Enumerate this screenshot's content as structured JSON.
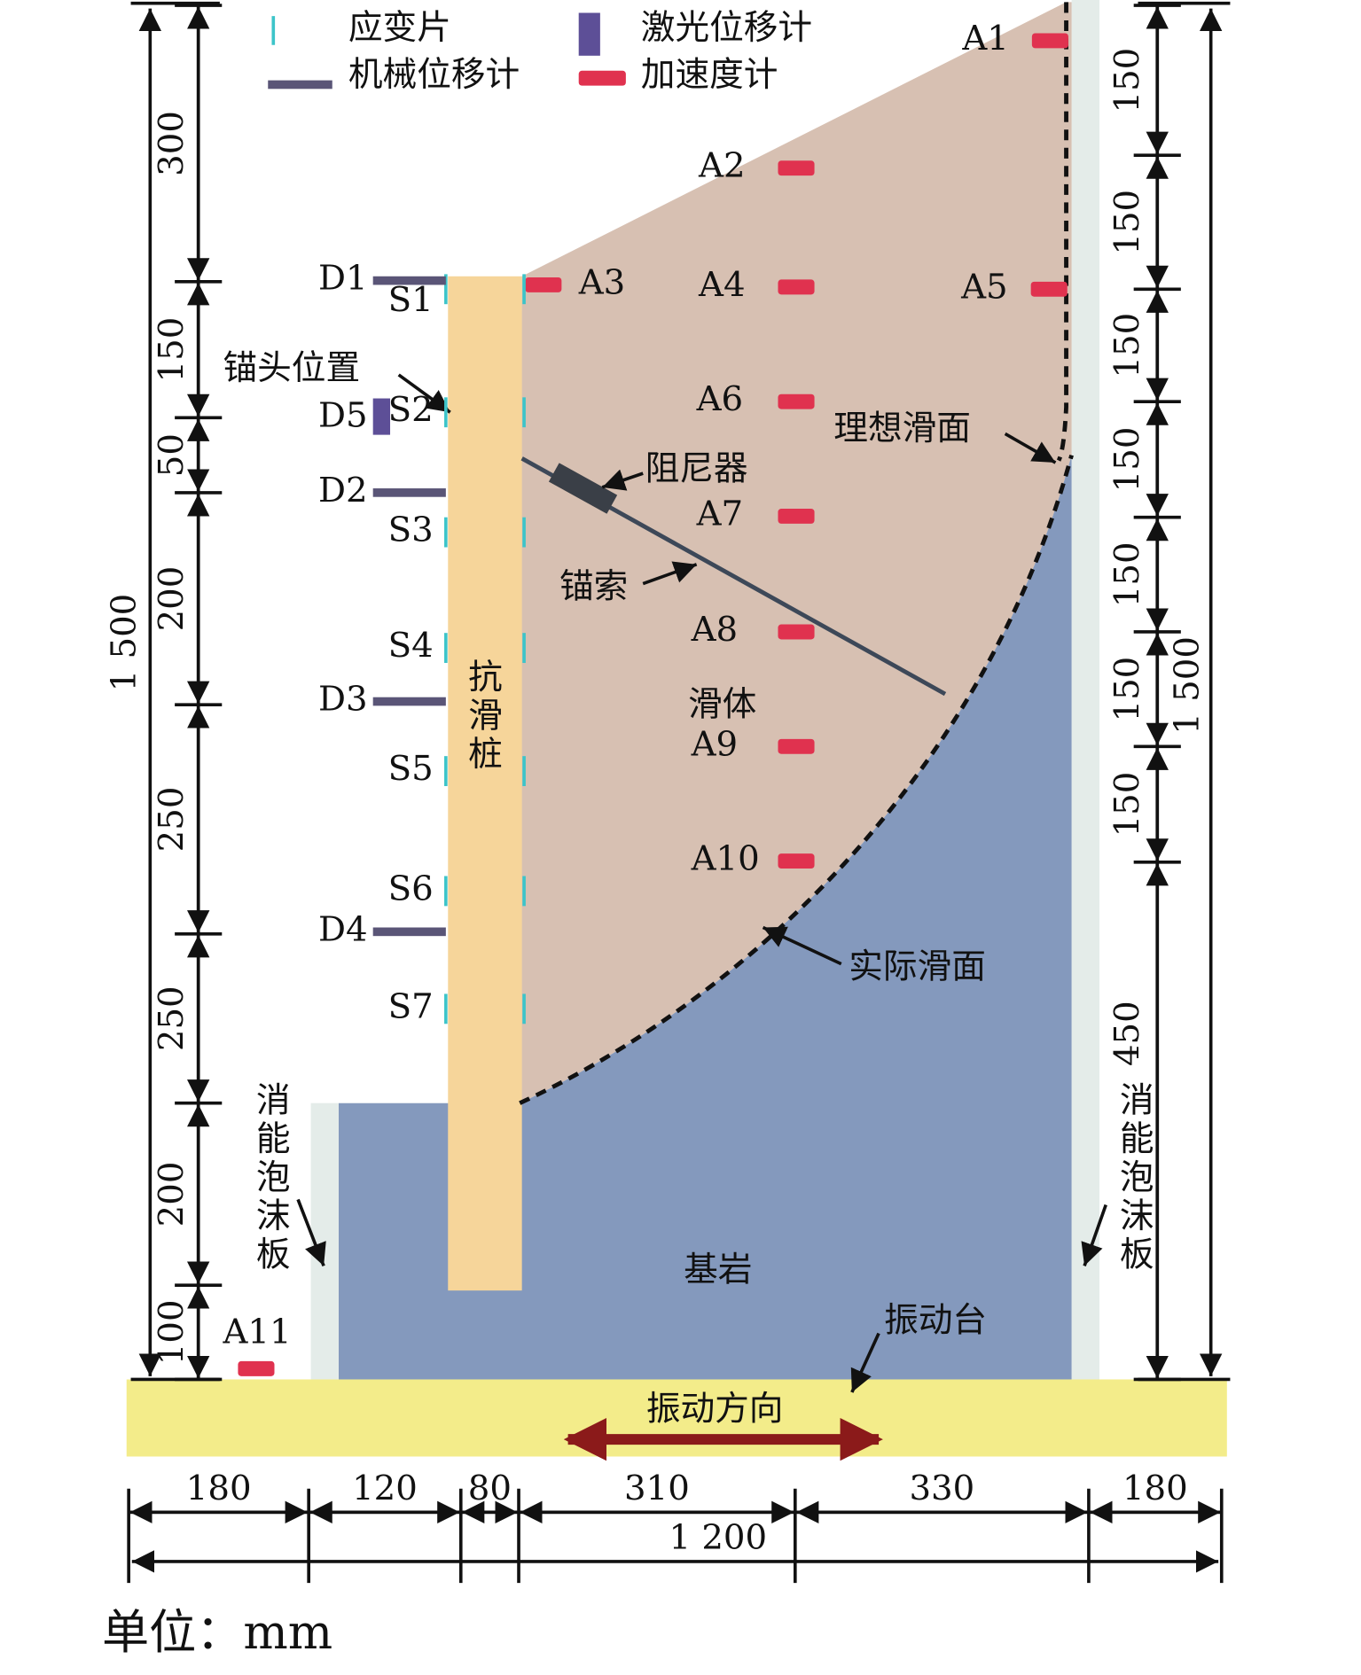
{
  "legend": {
    "strain_gauge": "应变片",
    "laser_displacement": "激光位移计",
    "mechanical_displacement": "机械位移计",
    "accelerometer": "加速度计"
  },
  "accelerometers": [
    "A1",
    "A2",
    "A3",
    "A4",
    "A5",
    "A6",
    "A7",
    "A8",
    "A9",
    "A10",
    "A11"
  ],
  "displacement_meters": [
    "D1",
    "D5",
    "D2",
    "D3",
    "D4"
  ],
  "strain_gauges": [
    "S1",
    "S2",
    "S3",
    "S4",
    "S5",
    "S6",
    "S7"
  ],
  "labels": {
    "pile": "抗滑桩",
    "anchor_head": "锚头位置",
    "damper": "阻尼器",
    "cable": "锚索",
    "sliding_body": "滑体",
    "ideal_slip_surface": "理想滑面",
    "actual_slip_surface": "实际滑面",
    "bedrock": "基岩",
    "shaking_table": "振动台",
    "vibration_direction": "振动方向",
    "foam_left": "消能泡沫板",
    "foam_right": "消能泡沫板"
  },
  "left_dimensions": {
    "total": "1 500",
    "segments": [
      "300",
      "150",
      "50",
      "200",
      "250",
      "250",
      "200",
      "100"
    ]
  },
  "right_dimensions": {
    "total": "1 500",
    "segments": [
      "150",
      "150",
      "150",
      "150",
      "150",
      "150",
      "150",
      "450"
    ]
  },
  "bottom_dimensions": {
    "total": "1 200",
    "segments": [
      "180",
      "120",
      "80",
      "310",
      "330",
      "180"
    ]
  },
  "unit": "单位：mm"
}
